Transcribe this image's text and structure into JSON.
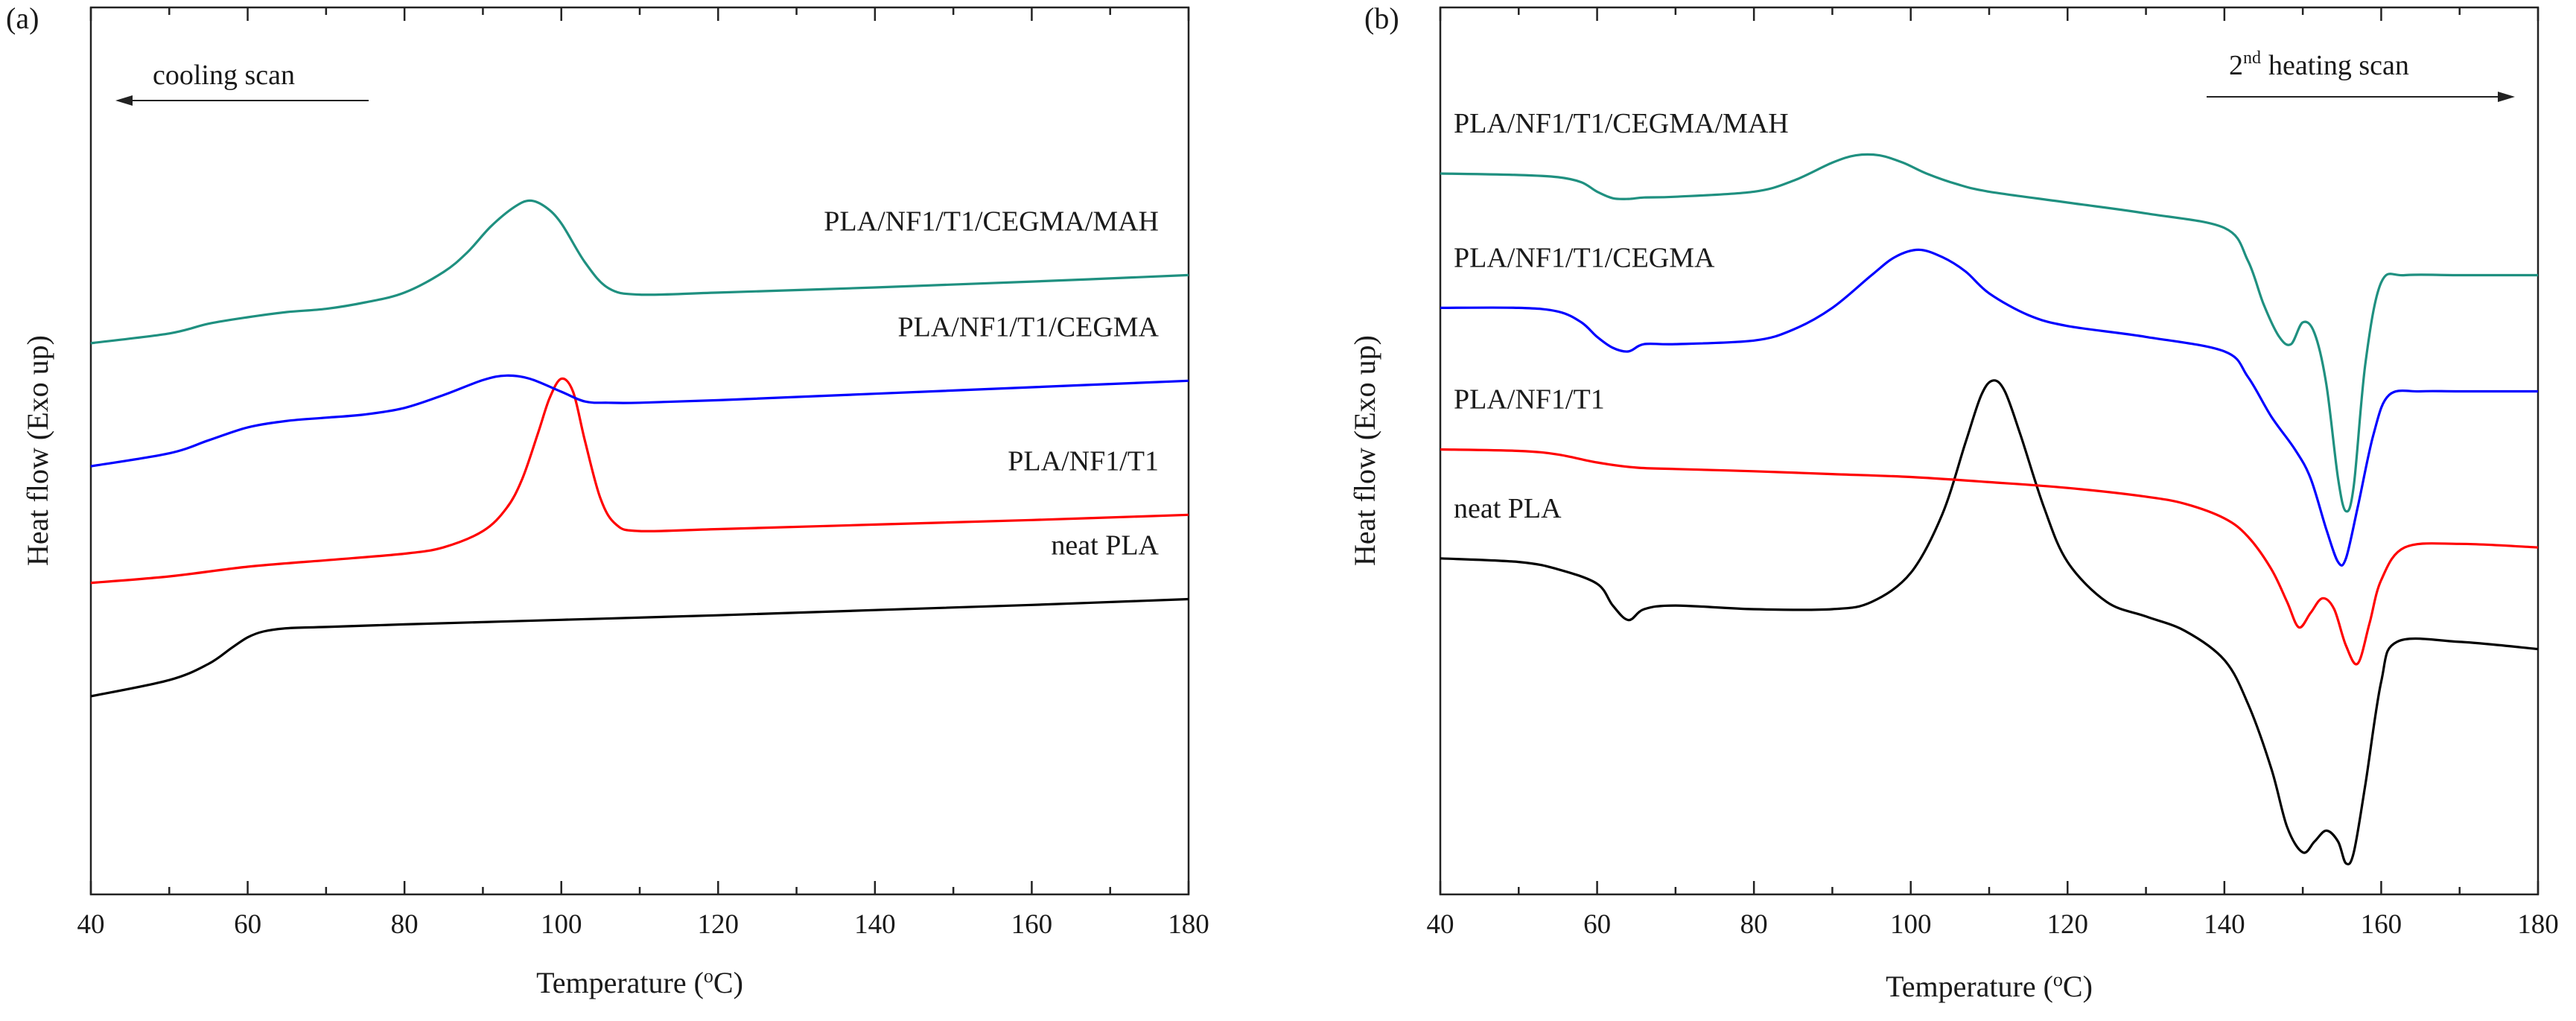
{
  "chart_data": [
    {
      "type": "line",
      "panel_label": "(a)",
      "annotation": "cooling scan",
      "annotation_arrow": "left",
      "xlabel": "Temperature (°C)",
      "ylabel": "Heat flow (Exo up)",
      "xlim": [
        40,
        180
      ],
      "xticks": [
        40,
        60,
        80,
        100,
        120,
        140,
        160,
        180
      ],
      "y_units": "arbitrary (offset curves, exo up)",
      "ylim": [
        0,
        100
      ],
      "series": [
        {
          "name": "neat PLA",
          "color": "#000000",
          "x": [
            40,
            50,
            55,
            58,
            60,
            62,
            65,
            70,
            80,
            100,
            120,
            140,
            160,
            180
          ],
          "y": [
            11.5,
            14,
            16.5,
            19,
            20.6,
            21.5,
            22.0,
            22.2,
            22.6,
            23.3,
            24.0,
            24.8,
            25.6,
            26.5
          ]
        },
        {
          "name": "PLA/NF1/T1",
          "color": "#ff0000",
          "x": [
            40,
            50,
            60,
            70,
            80,
            85,
            90,
            93,
            95,
            97,
            98.5,
            100,
            101.5,
            103,
            105,
            107,
            110,
            120,
            140,
            160,
            180
          ],
          "y": [
            29,
            30,
            31.5,
            32.5,
            33.5,
            34.5,
            37,
            40.5,
            45,
            52,
            57.5,
            60.5,
            58.5,
            51,
            42,
            38,
            37,
            37.3,
            38,
            38.7,
            39.5
          ]
        },
        {
          "name": "PLA/NF1/T1/CEGMA",
          "color": "#0000ff",
          "x": [
            40,
            50,
            55,
            60,
            65,
            70,
            75,
            80,
            85,
            90,
            93,
            96,
            100,
            103,
            106,
            110,
            120,
            140,
            160,
            180
          ],
          "y": [
            47,
            49,
            51,
            53,
            54,
            54.5,
            55,
            56,
            58,
            60.3,
            61,
            60.5,
            58.5,
            57,
            56.8,
            56.8,
            57.2,
            58.2,
            59.2,
            60.2
          ]
        },
        {
          "name": "PLA/NF1/T1/CEGMA/MAH",
          "color": "#1f9080",
          "x": [
            40,
            50,
            55,
            60,
            65,
            70,
            75,
            80,
            85,
            88,
            91,
            94,
            96,
            98,
            100,
            103,
            106,
            110,
            120,
            140,
            160,
            180
          ],
          "y": [
            66,
            67.5,
            69,
            70,
            70.8,
            71.3,
            72.3,
            73.8,
            77,
            80,
            84,
            87,
            88,
            87,
            84.5,
            78.5,
            74.5,
            73.5,
            73.8,
            74.6,
            75.5,
            76.5
          ]
        }
      ],
      "series_label_position": "above each curve, right side"
    },
    {
      "type": "line",
      "panel_label": "(b)",
      "annotation": "heating scan",
      "annotation_prefix": "2",
      "annotation_superscript": "nd",
      "annotation_arrow": "right",
      "xlabel": "Temperature (°C)",
      "ylabel": "Heat flow (Exo up)",
      "xlim": [
        40,
        180
      ],
      "xticks": [
        40,
        60,
        80,
        100,
        120,
        140,
        160,
        180
      ],
      "y_units": "arbitrary (offset curves, exo up)",
      "ylim": [
        0,
        100
      ],
      "series": [
        {
          "name": "neat PLA",
          "color": "#000000",
          "x": [
            40,
            50,
            55,
            60,
            62,
            64,
            66,
            70,
            80,
            90,
            95,
            100,
            104,
            107,
            109,
            110.5,
            112,
            114,
            117,
            120,
            125,
            130,
            135,
            140,
            143,
            146,
            148,
            150,
            151.5,
            153,
            154.5,
            155.5,
            156.5,
            158,
            160,
            162,
            170,
            180
          ],
          "y": [
            39,
            38.5,
            37.5,
            35.5,
            32.5,
            30.5,
            32,
            32.5,
            32,
            32,
            33,
            37,
            45,
            55,
            61.5,
            63.5,
            62,
            56,
            46,
            38.5,
            33,
            31,
            29,
            25,
            19,
            10,
            2,
            -1.5,
            0,
            1.5,
            0,
            -3,
            -1.5,
            8,
            22,
            27.5,
            27.5,
            26.5
          ]
        },
        {
          "name": "PLA/NF1/T1",
          "color": "#ff0000",
          "x": [
            40,
            50,
            55,
            60,
            65,
            70,
            80,
            90,
            100,
            110,
            120,
            130,
            135,
            140,
            143,
            146,
            148,
            149.5,
            151,
            152.5,
            154,
            155.5,
            157,
            158.5,
            160,
            163,
            170,
            180
          ],
          "y": [
            54,
            53.8,
            53.3,
            52.2,
            51.5,
            51.3,
            51,
            50.6,
            50.2,
            49.5,
            48.7,
            47.5,
            46.5,
            44.5,
            42,
            37.5,
            33,
            29.5,
            31.5,
            33.5,
            32,
            27,
            24.5,
            30,
            36,
            40.5,
            41,
            40.5
          ]
        },
        {
          "name": "PLA/NF1/T1/CEGMA",
          "color": "#0000ff",
          "x": [
            40,
            50,
            55,
            58,
            60,
            62,
            64,
            66,
            70,
            80,
            85,
            90,
            95,
            98,
            101,
            104,
            107,
            110,
            115,
            120,
            130,
            140,
            143,
            146,
            149,
            151,
            153,
            154.5,
            155.5,
            157,
            159,
            161,
            165,
            170,
            180
          ],
          "y": [
            73.5,
            73.5,
            73,
            71.5,
            69.5,
            68,
            67.5,
            68.5,
            68.5,
            69,
            70.5,
            73.5,
            78,
            80.5,
            81.5,
            80.5,
            78.5,
            75.5,
            72.5,
            71,
            69.5,
            67.5,
            64,
            58.5,
            54,
            50,
            43,
            38.5,
            39,
            46,
            56,
            61.5,
            62,
            62,
            62
          ]
        },
        {
          "name": "PLA/NF1/T1/CEGMA/MAH",
          "color": "#1f9080",
          "x": [
            40,
            50,
            55,
            58,
            60,
            62,
            64,
            66,
            70,
            80,
            85,
            90,
            93,
            96,
            99,
            102,
            106,
            110,
            120,
            130,
            140,
            143,
            145,
            147,
            148.5,
            150,
            151.5,
            153,
            154.5,
            155.5,
            156.5,
            158,
            160,
            163,
            170,
            180
          ],
          "y": [
            92,
            91.8,
            91.5,
            90.8,
            89.5,
            88.6,
            88.5,
            88.7,
            88.8,
            89.5,
            91,
            93.5,
            94.5,
            94.5,
            93.5,
            92,
            90.5,
            89.5,
            88,
            86.5,
            84.5,
            80,
            74,
            69.5,
            68.5,
            71.5,
            70,
            63,
            50,
            45.5,
            49,
            66,
            77,
            78,
            78,
            78
          ]
        }
      ],
      "series_label_position": "above each curve, left side"
    }
  ]
}
